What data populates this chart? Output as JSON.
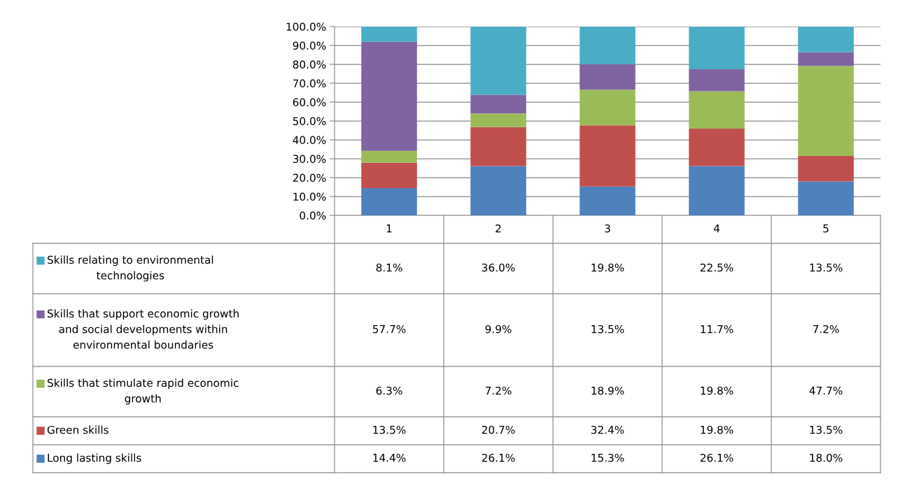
{
  "chart_data": {
    "type": "bar",
    "stacked": true,
    "categories": [
      "1",
      "2",
      "3",
      "4",
      "5"
    ],
    "series": [
      {
        "name": "Long lasting skills",
        "color": "#4f81bd",
        "values": [
          14.4,
          26.1,
          15.3,
          26.1,
          18.0
        ],
        "value_labels": [
          "14.4%",
          "26.1%",
          "15.3%",
          "26.1%",
          "18.0%"
        ]
      },
      {
        "name": "Green skills",
        "color": "#c0504d",
        "values": [
          13.5,
          20.7,
          32.4,
          19.8,
          13.5
        ],
        "value_labels": [
          "13.5%",
          "20.7%",
          "32.4%",
          "19.8%",
          "13.5%"
        ]
      },
      {
        "name": "Skills that stimulate rapid economic growth",
        "color": "#9bbb59",
        "values": [
          6.3,
          7.2,
          18.9,
          19.8,
          47.7
        ],
        "value_labels": [
          "6.3%",
          "7.2%",
          "18.9%",
          "19.8%",
          "47.7%"
        ]
      },
      {
        "name": "Skills that support economic growth and social developments within environmental boundaries",
        "color": "#8064a2",
        "values": [
          57.7,
          9.9,
          13.5,
          11.7,
          7.2
        ],
        "value_labels": [
          "57.7%",
          "9.9%",
          "13.5%",
          "11.7%",
          "7.2%"
        ]
      },
      {
        "name": "Skills relating to environmental technologies",
        "color": "#4bacc6",
        "values": [
          8.1,
          36.0,
          19.8,
          22.5,
          13.5
        ],
        "value_labels": [
          "8.1%",
          "36.0%",
          "19.8%",
          "22.5%",
          "13.5%"
        ]
      }
    ],
    "ylim": [
      0,
      100
    ],
    "yticks": [
      {
        "value": 0,
        "label": "0.0%"
      },
      {
        "value": 10,
        "label": "10.0%"
      },
      {
        "value": 20,
        "label": "20.0%"
      },
      {
        "value": 30,
        "label": "30.0%"
      },
      {
        "value": 40,
        "label": "40.0%"
      },
      {
        "value": 50,
        "label": "50.0%"
      },
      {
        "value": 60,
        "label": "60.0%"
      },
      {
        "value": 70,
        "label": "70.0%"
      },
      {
        "value": 80,
        "label": "80.0%"
      },
      {
        "value": 90,
        "label": "90.0%"
      },
      {
        "value": 100,
        "label": "100.0%"
      }
    ],
    "grid": "y",
    "legend": "bottom"
  }
}
